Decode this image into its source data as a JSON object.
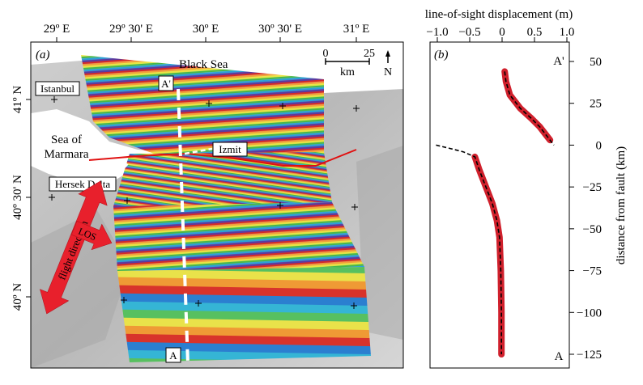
{
  "panel_a": {
    "label": "(a)",
    "lon_ticks": [
      "29º E",
      "29º 30' E",
      "30º E",
      "30º 30' E",
      "31º E"
    ],
    "lat_ticks": [
      "41º N",
      "40º 30' N",
      "40º N"
    ],
    "places": {
      "black_sea": "Black Sea",
      "istanbul": "Istanbul",
      "sea_of_marmara": [
        "Sea of",
        "Marmara"
      ],
      "izmit": "Izmit",
      "hersek_delta": "Hersek Delta",
      "profile_start": "A",
      "profile_end": "A'"
    },
    "scale_bar": {
      "zero": "0",
      "max": "25",
      "unit": "km",
      "north": "N"
    },
    "arrows": {
      "los": "LOS",
      "flight": "flight direction"
    },
    "colors": {
      "fault": "#e01010",
      "profile": "#ffffff",
      "los_arrow": "#e8202c"
    }
  },
  "panel_b": {
    "label": "(b)",
    "end_top": "A'",
    "end_bottom": "A",
    "chart_data": {
      "type": "line",
      "xlabel": "line-of-sight displacement (m)",
      "ylabel": "distance from fault (km)",
      "xlim": [
        -1.0,
        1.0
      ],
      "ylim": [
        -130,
        60
      ],
      "xticks": [
        "−1.0",
        "−0.5",
        "0",
        "0.5",
        "1.0"
      ],
      "yticks": [
        "50",
        "25",
        "0",
        "−25",
        "−50",
        "−75",
        "−100",
        "−125"
      ],
      "series": [
        {
          "role": "observed-north",
          "color": "#d0202c",
          "x": [
            0.04,
            0.06,
            0.12,
            0.28,
            0.45,
            0.58,
            0.68,
            0.74
          ],
          "y": [
            44,
            38,
            30,
            22,
            16,
            11,
            6,
            3
          ]
        },
        {
          "role": "observed-south",
          "color": "#d0202c",
          "x": [
            -0.42,
            -0.35,
            -0.25,
            -0.15,
            -0.08,
            -0.04,
            -0.02,
            -0.01,
            -0.01
          ],
          "y": [
            -7,
            -15,
            -25,
            -35,
            -45,
            -55,
            -75,
            -100,
            -125
          ]
        },
        {
          "role": "model",
          "color": "#000000",
          "dashed": true,
          "x": [
            0.04,
            0.06,
            0.12,
            0.28,
            0.45,
            0.58,
            0.68,
            0.74,
            0.8
          ],
          "y": [
            44,
            38,
            30,
            22,
            16,
            11,
            6,
            3,
            0
          ]
        },
        {
          "role": "model-south",
          "color": "#000000",
          "dashed": true,
          "x": [
            -1.02,
            -0.8,
            -0.6,
            -0.42,
            -0.35,
            -0.25,
            -0.15,
            -0.08,
            -0.04,
            -0.02,
            -0.01,
            -0.01
          ],
          "y": [
            0,
            -2,
            -4,
            -7,
            -15,
            -25,
            -35,
            -45,
            -55,
            -75,
            -100,
            -125
          ]
        }
      ]
    }
  }
}
